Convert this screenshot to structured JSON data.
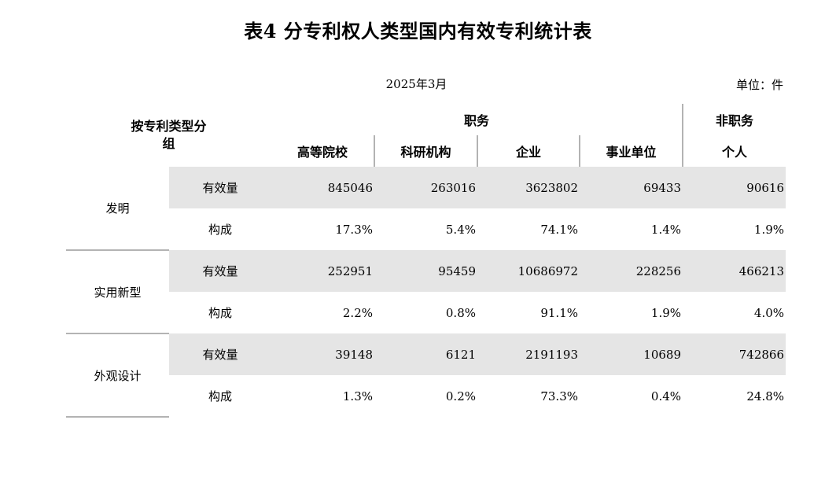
{
  "title": "表4 分专利权人类型国内有效专利统计表",
  "date": "2025年3月",
  "unit": "单位：件",
  "header": {
    "row_header": "按专利类型分组",
    "group_service": "职务",
    "group_nonservice": "非职务",
    "columns": [
      "高等院校",
      "科研机构",
      "企业",
      "事业单位",
      "个人"
    ]
  },
  "rows": [
    {
      "type": "发明",
      "count_label": "有效量",
      "counts": [
        "845046",
        "263016",
        "3623802",
        "69433",
        "90616"
      ],
      "share_label": "构成",
      "shares": [
        "17.3%",
        "5.4%",
        "74.1%",
        "1.4%",
        "1.9%"
      ]
    },
    {
      "type": "实用新型",
      "count_label": "有效量",
      "counts": [
        "252951",
        "95459",
        "10686972",
        "228256",
        "466213"
      ],
      "share_label": "构成",
      "shares": [
        "2.2%",
        "0.8%",
        "91.1%",
        "1.9%",
        "4.0%"
      ]
    },
    {
      "type": "外观设计",
      "count_label": "有效量",
      "counts": [
        "39148",
        "6121",
        "2191193",
        "10689",
        "742866"
      ],
      "share_label": "构成",
      "shares": [
        "1.3%",
        "0.2%",
        "73.3%",
        "0.4%",
        "24.8%"
      ]
    }
  ]
}
